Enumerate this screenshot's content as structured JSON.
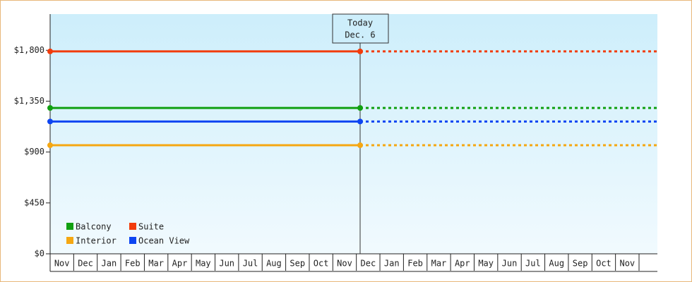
{
  "chart_data": {
    "type": "line",
    "categories": [
      "Nov",
      "Dec",
      "Jan",
      "Feb",
      "Mar",
      "Apr",
      "May",
      "Jun",
      "Jul",
      "Aug",
      "Sep",
      "Oct",
      "Nov",
      "Dec",
      "Jan",
      "Feb",
      "Mar",
      "Apr",
      "May",
      "Jun",
      "Jul",
      "Aug",
      "Sep",
      "Oct",
      "Nov"
    ],
    "series": [
      {
        "name": "Balcony",
        "color": "#11a011",
        "value": 1290
      },
      {
        "name": "Suite",
        "color": "#f23c0c",
        "value": 1790
      },
      {
        "name": "Interior",
        "color": "#f5a712",
        "value": 960
      },
      {
        "name": "Ocean View",
        "color": "#0d45f2",
        "value": 1170
      }
    ],
    "today_label": [
      "Today",
      "Dec. 6"
    ],
    "ylim": [
      0,
      2120
    ],
    "yticks": [
      {
        "value": 0,
        "label": "$0"
      },
      {
        "value": 450,
        "label": "$450"
      },
      {
        "value": 900,
        "label": "$900"
      },
      {
        "value": 1350,
        "label": "$1,350"
      },
      {
        "value": 1800,
        "label": "$1,800"
      }
    ]
  }
}
